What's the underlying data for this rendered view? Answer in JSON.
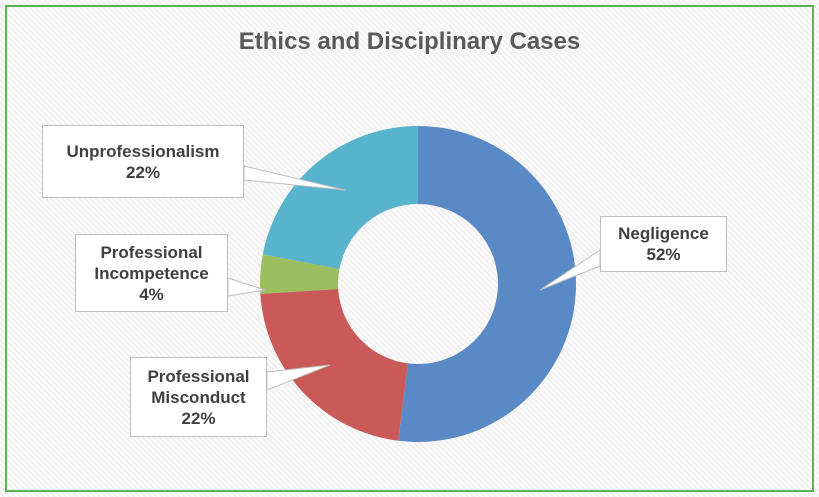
{
  "chart_data": {
    "type": "pie",
    "donut": true,
    "title": "Ethics and Disciplinary Cases",
    "categories": [
      "Negligence",
      "Professional Misconduct",
      "Professional Incompetence",
      "Unprofessionalism"
    ],
    "values": [
      52,
      22,
      4,
      22
    ],
    "value_labels": [
      "52%",
      "22%",
      "4%",
      "22%"
    ],
    "colors": [
      "#5a8ac6",
      "#c95a58",
      "#9bbe5f",
      "#58b3cd"
    ]
  }
}
